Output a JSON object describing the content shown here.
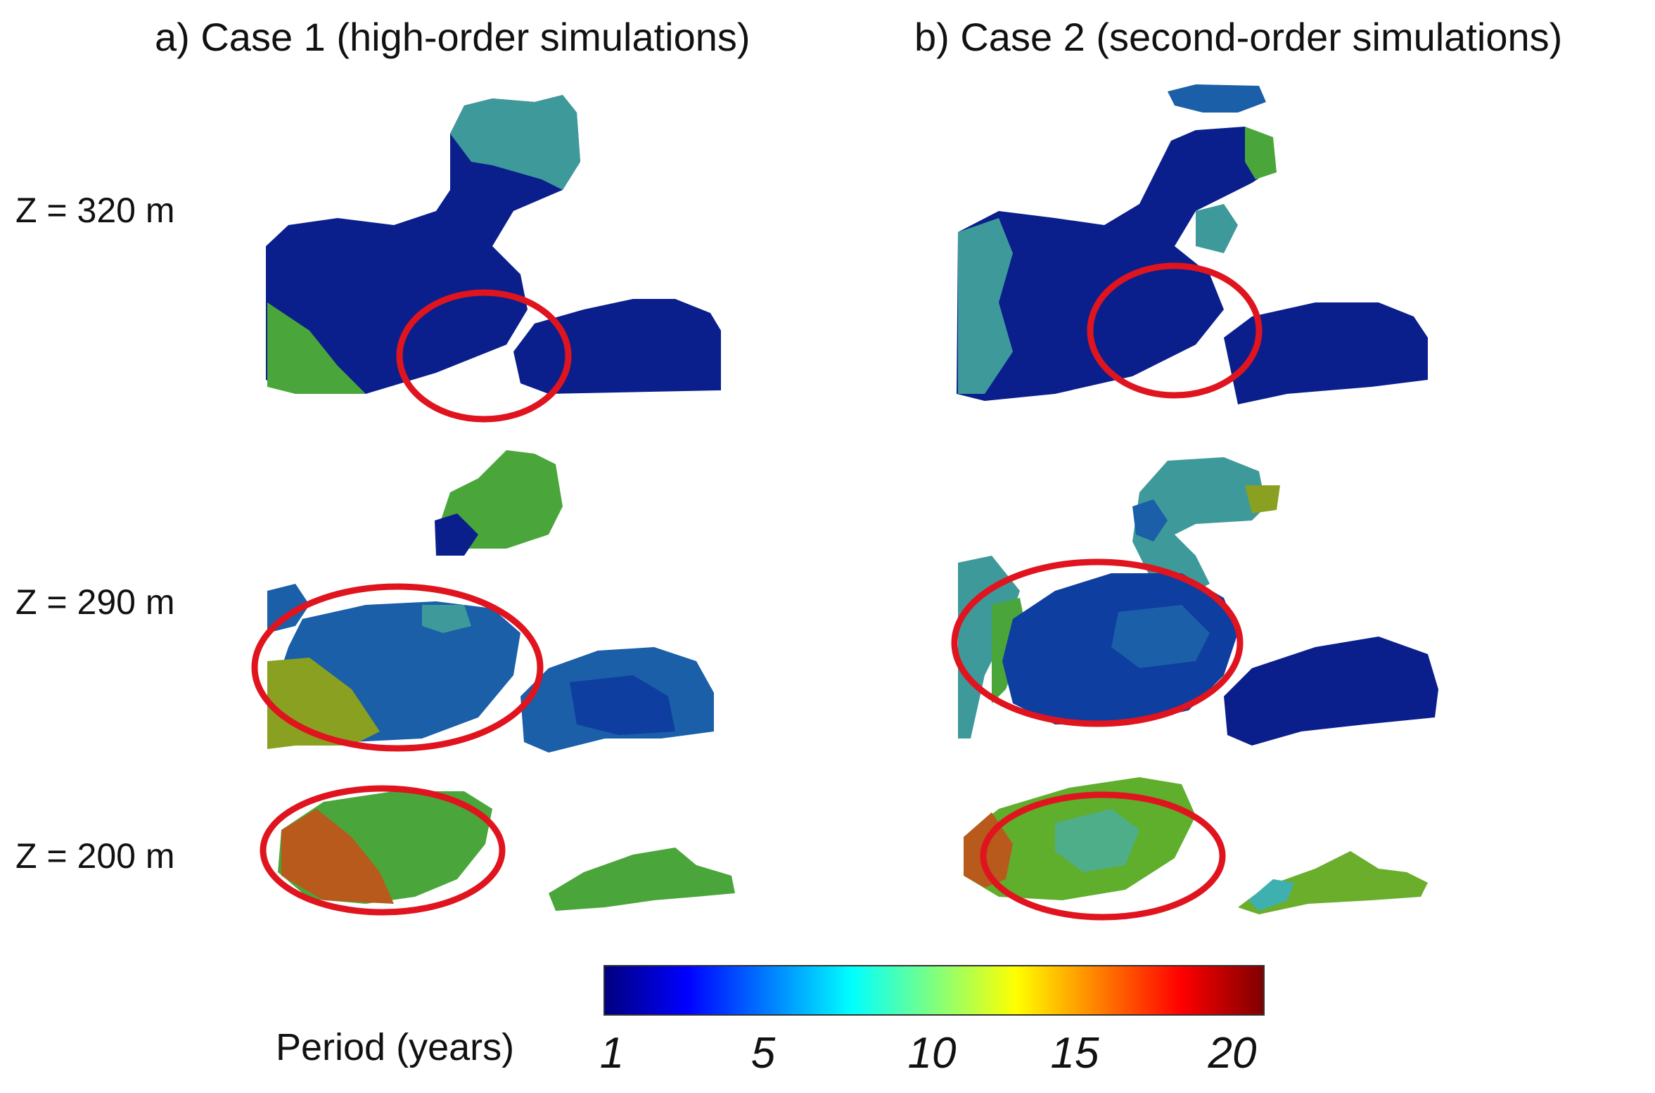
{
  "panels": [
    {
      "title": "a) Case 1 (high-order simulations)"
    },
    {
      "title": "b) Case 2 (second-order simulations)"
    }
  ],
  "rows": [
    {
      "label": "Z = 320 m"
    },
    {
      "label": "Z = 290 m"
    },
    {
      "label": "Z = 200 m"
    }
  ],
  "colorbar": {
    "title": "Period (years)",
    "colormap": "jet",
    "range": [
      1,
      20
    ],
    "ticks": [
      "1",
      "5",
      "10",
      "15",
      "20"
    ],
    "stops": [
      "#00007f",
      "#0000ff",
      "#007fff",
      "#00ffff",
      "#7fff7f",
      "#ffff00",
      "#ff7f00",
      "#ff0000",
      "#7f0000"
    ]
  },
  "colors": {
    "highlight_ellipse": "#e0141e",
    "deep_blue": "#0a1f8c",
    "mid_blue": "#1a5fa8",
    "teal": "#3e9a9a",
    "green": "#4aa63a",
    "olive": "#8aa020",
    "orange": "#b85a1c"
  }
}
